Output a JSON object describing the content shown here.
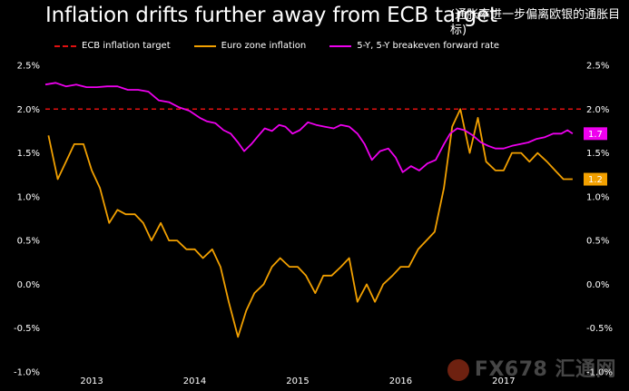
{
  "title": "Inflation drifts further away from ECB target",
  "subtitle": "(通胀率进一步偏离欧银的通胀目标)",
  "watermark": "FX678 汇通网",
  "colors": {
    "background": "#000000",
    "target": "#e01010",
    "euro": "#f2a000",
    "breakeven": "#ee00ee",
    "text": "#ffffff"
  },
  "chart_data": {
    "type": "line",
    "title": "Inflation drifts further away from ECB target",
    "ylim": [
      -1.0,
      2.5
    ],
    "yticks": [
      "2.5%",
      "2.0%",
      "1.5%",
      "1.0%",
      "0.5%",
      "0.0%",
      "-0.5%",
      "-1.0%"
    ],
    "ytick_values": [
      2.5,
      2.0,
      1.5,
      1.0,
      0.5,
      0.0,
      -0.5,
      -1.0
    ],
    "xlim": [
      2012.55,
      2017.75
    ],
    "xticks": [
      "2013",
      "2014",
      "2015",
      "2016",
      "2017"
    ],
    "xtick_values": [
      2013.0,
      2014.0,
      2015.0,
      2016.0,
      2017.0
    ],
    "grid": false,
    "legend_placement": "top",
    "series": [
      {
        "name": "ECB inflation target",
        "style": "dashed",
        "x": [
          2012.55,
          2017.75
        ],
        "values": [
          2.0,
          2.0
        ]
      },
      {
        "name": "Euro zone inflation",
        "style": "solid",
        "end_label": "1.2",
        "x": [
          2012.58,
          2012.67,
          2012.75,
          2012.83,
          2012.92,
          2013.0,
          2013.08,
          2013.17,
          2013.25,
          2013.33,
          2013.42,
          2013.5,
          2013.58,
          2013.67,
          2013.75,
          2013.83,
          2013.92,
          2014.0,
          2014.08,
          2014.17,
          2014.25,
          2014.33,
          2014.42,
          2014.5,
          2014.58,
          2014.67,
          2014.75,
          2014.83,
          2014.92,
          2015.0,
          2015.08,
          2015.17,
          2015.25,
          2015.33,
          2015.42,
          2015.5,
          2015.58,
          2015.67,
          2015.75,
          2015.83,
          2015.92,
          2016.0,
          2016.08,
          2016.17,
          2016.25,
          2016.33,
          2016.42,
          2016.5,
          2016.58,
          2016.67,
          2016.75,
          2016.83,
          2016.92,
          2017.0,
          2017.08,
          2017.17,
          2017.25,
          2017.33,
          2017.42,
          2017.5,
          2017.58,
          2017.67
        ],
        "values": [
          1.7,
          1.2,
          1.4,
          1.6,
          1.6,
          1.3,
          1.1,
          0.7,
          0.85,
          0.8,
          0.8,
          0.7,
          0.5,
          0.7,
          0.5,
          0.5,
          0.4,
          0.4,
          0.3,
          0.4,
          0.2,
          -0.2,
          -0.6,
          -0.3,
          -0.1,
          0.0,
          0.2,
          0.3,
          0.2,
          0.2,
          0.1,
          -0.1,
          0.1,
          0.1,
          0.2,
          0.3,
          -0.2,
          0.0,
          -0.2,
          0.0,
          0.1,
          0.2,
          0.2,
          0.4,
          0.5,
          0.6,
          1.1,
          1.8,
          2.0,
          1.5,
          1.9,
          1.4,
          1.3,
          1.3,
          1.5,
          1.5,
          1.4,
          1.5,
          1.4,
          1.3,
          1.2,
          1.2
        ]
      },
      {
        "name": "5-Y, 5-Y breakeven forward rate",
        "style": "solid",
        "end_label": "1.7",
        "x": [
          2012.55,
          2012.65,
          2012.75,
          2012.85,
          2012.95,
          2013.05,
          2013.15,
          2013.25,
          2013.35,
          2013.45,
          2013.55,
          2013.65,
          2013.75,
          2013.85,
          2013.95,
          2014.05,
          2014.12,
          2014.2,
          2014.28,
          2014.35,
          2014.42,
          2014.48,
          2014.55,
          2014.62,
          2014.68,
          2014.75,
          2014.82,
          2014.88,
          2014.95,
          2015.02,
          2015.1,
          2015.18,
          2015.26,
          2015.35,
          2015.42,
          2015.5,
          2015.58,
          2015.65,
          2015.72,
          2015.8,
          2015.88,
          2015.95,
          2016.02,
          2016.1,
          2016.18,
          2016.26,
          2016.34,
          2016.42,
          2016.48,
          2016.55,
          2016.62,
          2016.7,
          2016.78,
          2016.85,
          2016.92,
          2017.0,
          2017.08,
          2017.16,
          2017.24,
          2017.32,
          2017.4,
          2017.48,
          2017.56,
          2017.62,
          2017.67
        ],
        "values": [
          2.28,
          2.3,
          2.26,
          2.28,
          2.25,
          2.25,
          2.26,
          2.26,
          2.22,
          2.22,
          2.2,
          2.1,
          2.08,
          2.02,
          1.98,
          1.9,
          1.86,
          1.84,
          1.76,
          1.72,
          1.62,
          1.52,
          1.6,
          1.7,
          1.78,
          1.75,
          1.82,
          1.8,
          1.72,
          1.76,
          1.85,
          1.82,
          1.8,
          1.78,
          1.82,
          1.8,
          1.72,
          1.6,
          1.42,
          1.52,
          1.55,
          1.45,
          1.28,
          1.35,
          1.3,
          1.38,
          1.42,
          1.6,
          1.72,
          1.78,
          1.76,
          1.7,
          1.62,
          1.58,
          1.55,
          1.55,
          1.58,
          1.6,
          1.62,
          1.66,
          1.68,
          1.72,
          1.72,
          1.76,
          1.72
        ]
      }
    ]
  }
}
